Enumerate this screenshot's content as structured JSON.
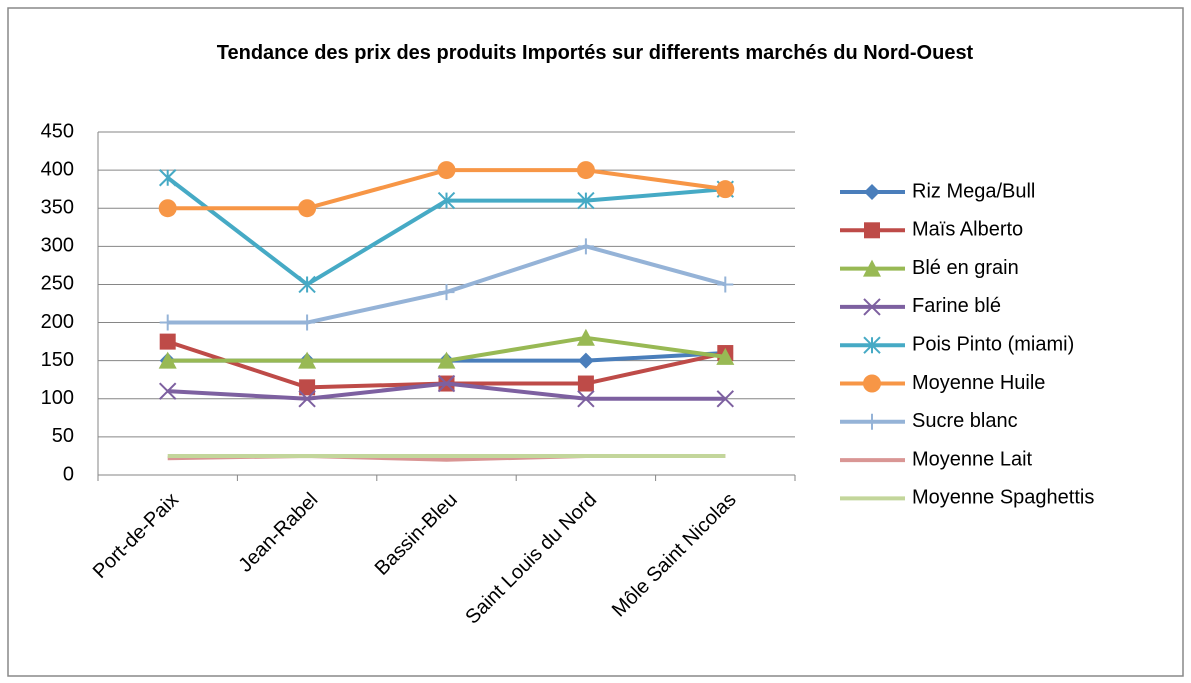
{
  "chart_data": {
    "type": "line",
    "title": "Tendance  des prix des produits Importés sur differents marchés du Nord-Ouest",
    "categories": [
      "Port-de-Paix",
      "Jean-Rabel",
      "Bassin-Bleu",
      "Saint Louis du Nord",
      "Môle Saint Nicolas"
    ],
    "ylim": [
      0,
      450
    ],
    "yticks": [
      0,
      50,
      100,
      150,
      200,
      250,
      300,
      350,
      400,
      450
    ],
    "grid": true,
    "legend": "right",
    "series": [
      {
        "name": "Riz Mega/Bull",
        "color": "#4a7ebb",
        "marker": "diamond",
        "values": [
          150,
          150,
          150,
          150,
          160
        ]
      },
      {
        "name": "Maïs Alberto",
        "color": "#be4b48",
        "marker": "square",
        "values": [
          175,
          115,
          120,
          120,
          160
        ]
      },
      {
        "name": "Blé en grain",
        "color": "#98b954",
        "marker": "triangle",
        "values": [
          150,
          150,
          150,
          180,
          155
        ]
      },
      {
        "name": "Farine blé",
        "color": "#7d60a0",
        "marker": "x",
        "values": [
          110,
          100,
          120,
          100,
          100
        ]
      },
      {
        "name": "Pois Pinto (miami)",
        "color": "#46aac5",
        "marker": "star",
        "values": [
          390,
          250,
          360,
          360,
          375
        ]
      },
      {
        "name": "Moyenne Huile",
        "color": "#f79646",
        "marker": "circle",
        "values": [
          350,
          350,
          400,
          400,
          375
        ]
      },
      {
        "name": "Sucre blanc",
        "color": "#95b3d7",
        "marker": "plus",
        "values": [
          200,
          200,
          240,
          300,
          250
        ]
      },
      {
        "name": "Moyenne Lait",
        "color": "#d99694",
        "marker": "none",
        "values": [
          22,
          25,
          20,
          25,
          25
        ]
      },
      {
        "name": "Moyenne Spaghettis",
        "color": "#c3d69b",
        "marker": "none",
        "values": [
          25,
          25,
          25,
          25,
          25
        ]
      }
    ]
  }
}
